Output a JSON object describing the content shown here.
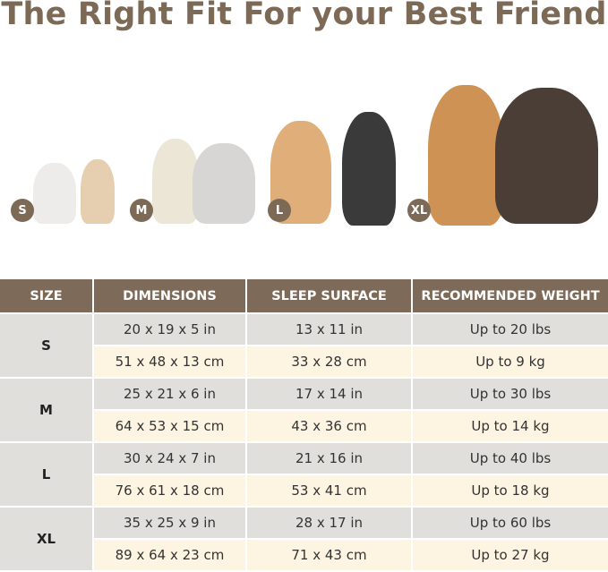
{
  "title": "The Right Fit For your Best Friend",
  "sizes_badges": [
    "S",
    "M",
    "L",
    "XL"
  ],
  "colors": {
    "brand": "#7d6a58",
    "row_gray": "#e0dfdc",
    "row_cream": "#fdf4e2"
  },
  "table": {
    "headers": [
      "SIZE",
      "DIMENSIONS",
      "SLEEP SURFACE",
      "RECOMMENDED WEIGHT"
    ],
    "rows": [
      {
        "size": "S",
        "imperial": [
          "20 x 19 x 5 in",
          "13 x 11 in",
          "Up to 20 lbs"
        ],
        "metric": [
          "51 x 48 x 13 cm",
          "33 x 28 cm",
          "Up to 9 kg"
        ]
      },
      {
        "size": "M",
        "imperial": [
          "25 x 21 x 6 in",
          "17 x 14 in",
          "Up to 30 lbs"
        ],
        "metric": [
          "64 x 53 x 15 cm",
          "43 x 36 cm",
          "Up to 14 kg"
        ]
      },
      {
        "size": "L",
        "imperial": [
          "30 x 24 x 7 in",
          "21 x 16 in",
          "Up to 40 lbs"
        ],
        "metric": [
          "76 x 61 x 18 cm",
          "53 x 41 cm",
          "Up to 18 kg"
        ]
      },
      {
        "size": "XL",
        "imperial": [
          "35 x 25 x 9 in",
          "28 x 17 in",
          "Up to 60 lbs"
        ],
        "metric": [
          "89 x 64 x 23 cm",
          "71 x 43 cm",
          "Up to 27 kg"
        ]
      }
    ]
  }
}
